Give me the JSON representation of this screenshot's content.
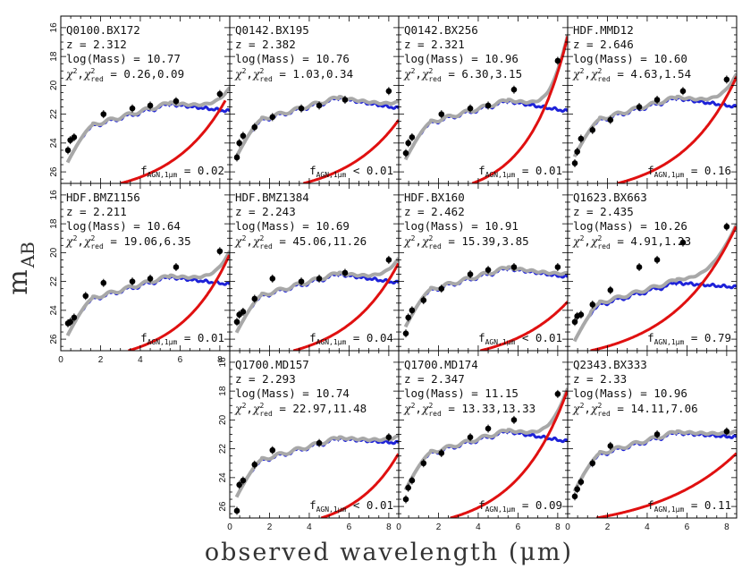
{
  "figure": {
    "xlabel": "observed wavelength (μm)",
    "ylabel": "m",
    "ylabel_sub": "AB"
  },
  "chart_data": {
    "type": "scatter",
    "layout": "3 rows x 4 columns small multiples; bottom-left panel empty",
    "xlabel": "observed wavelength (μm)",
    "ylabel": "m_AB",
    "xlim": [
      0,
      8.5
    ],
    "ylim": [
      26.8,
      15.2
    ],
    "y_inverted": true,
    "xticks": [
      0,
      2,
      4,
      6,
      8
    ],
    "yticks": [
      16,
      18,
      20,
      22,
      24,
      26
    ],
    "legend": "none",
    "grid": false,
    "colors": {
      "photometry_points": "#000000",
      "total_model": "#a8a8a8",
      "stellar_template": "#1e22d8",
      "agn_powerlaw": "#e01010"
    },
    "panels": [
      {
        "id": "Q0100.BX172",
        "z": "2.312",
        "logmass": "10.77",
        "chi2": "0.26,0.09",
        "fagn_op": "=",
        "fagn": "0.02",
        "points": [
          [
            0.36,
            24.5
          ],
          [
            0.48,
            23.8
          ],
          [
            0.67,
            23.6
          ],
          [
            2.15,
            22.0
          ],
          [
            3.6,
            21.6
          ],
          [
            4.5,
            21.4
          ],
          [
            5.8,
            21.1
          ],
          [
            8.0,
            20.6
          ]
        ],
        "stellar_level": 21.3,
        "stellar_drop": 0.5,
        "agn": {
          "x0": 3.0,
          "x1": 8.3,
          "m0": 26.8,
          "m1": 21.0
        }
      },
      {
        "id": "Q0142.BX195",
        "z": "2.382",
        "logmass": "10.76",
        "chi2": "1.03,0.34",
        "fagn_op": "<",
        "fagn": "0.01",
        "points": [
          [
            0.36,
            25.0
          ],
          [
            0.48,
            24.0
          ],
          [
            0.67,
            23.5
          ],
          [
            1.25,
            22.9
          ],
          [
            2.15,
            22.2
          ],
          [
            3.6,
            21.6
          ],
          [
            4.5,
            21.4
          ],
          [
            5.8,
            21.0
          ],
          [
            8.0,
            20.4
          ]
        ],
        "stellar_level": 20.9,
        "stellar_drop": 0.7,
        "agn": {
          "x0": 3.7,
          "x1": 8.5,
          "m0": 26.8,
          "m1": 22.4
        }
      },
      {
        "id": "Q0142.BX256",
        "z": "2.321",
        "logmass": "10.96",
        "chi2": "6.30,3.15",
        "fagn_op": "=",
        "fagn": "0.01",
        "points": [
          [
            0.36,
            24.7
          ],
          [
            0.48,
            24.0
          ],
          [
            0.67,
            23.6
          ],
          [
            2.15,
            22.0
          ],
          [
            3.6,
            21.6
          ],
          [
            4.5,
            21.4
          ],
          [
            5.8,
            20.3
          ],
          [
            8.0,
            18.3
          ]
        ],
        "stellar_level": 21.1,
        "stellar_drop": 0.7,
        "agn": {
          "x0": 3.7,
          "x1": 8.5,
          "m0": 26.8,
          "m1": 16.6
        }
      },
      {
        "id": "HDF.MMD12",
        "z": "2.646",
        "logmass": "10.60",
        "chi2": "4.63,1.54",
        "fagn_op": "=",
        "fagn": "0.16",
        "points": [
          [
            0.36,
            25.4
          ],
          [
            0.48,
            24.6
          ],
          [
            0.67,
            23.7
          ],
          [
            1.25,
            23.1
          ],
          [
            2.15,
            22.4
          ],
          [
            3.6,
            21.5
          ],
          [
            4.5,
            21.0
          ],
          [
            5.8,
            20.4
          ],
          [
            8.0,
            19.6
          ]
        ],
        "stellar_level": 20.9,
        "stellar_drop": 0.6,
        "agn": {
          "x0": 2.5,
          "x1": 8.5,
          "m0": 26.8,
          "m1": 19.4
        }
      },
      {
        "id": "HDF.BMZ1156",
        "z": "2.211",
        "logmass": "10.64",
        "chi2": "19.06,6.35",
        "fagn_op": "=",
        "fagn": "0.01",
        "points": [
          [
            0.36,
            24.9
          ],
          [
            0.48,
            24.8
          ],
          [
            0.67,
            24.5
          ],
          [
            1.25,
            23.0
          ],
          [
            2.15,
            22.1
          ],
          [
            3.6,
            22.0
          ],
          [
            4.5,
            21.8
          ],
          [
            5.8,
            21.0
          ],
          [
            8.0,
            19.9
          ]
        ],
        "stellar_level": 21.7,
        "stellar_drop": 0.5,
        "agn": {
          "x0": 3.4,
          "x1": 8.5,
          "m0": 26.8,
          "m1": 20.1
        }
      },
      {
        "id": "HDF.BMZ1384",
        "z": "2.243",
        "logmass": "10.69",
        "chi2": "45.06,11.26",
        "fagn_op": "=",
        "fagn": "0.04",
        "points": [
          [
            0.36,
            24.8
          ],
          [
            0.48,
            24.3
          ],
          [
            0.67,
            24.1
          ],
          [
            1.25,
            23.2
          ],
          [
            2.15,
            21.8
          ],
          [
            3.6,
            22.0
          ],
          [
            4.5,
            21.8
          ],
          [
            5.8,
            21.4
          ],
          [
            8.0,
            20.5
          ]
        ],
        "stellar_level": 21.5,
        "stellar_drop": 0.6,
        "agn": {
          "x0": 3.2,
          "x1": 8.5,
          "m0": 26.8,
          "m1": 20.7
        }
      },
      {
        "id": "HDF.BX160",
        "z": "2.462",
        "logmass": "10.91",
        "chi2": "15.39,3.85",
        "fagn_op": "<",
        "fagn": "0.01",
        "points": [
          [
            0.36,
            25.6
          ],
          [
            0.48,
            24.5
          ],
          [
            0.67,
            24.0
          ],
          [
            1.25,
            23.3
          ],
          [
            2.15,
            22.5
          ],
          [
            3.6,
            21.5
          ],
          [
            4.5,
            21.2
          ],
          [
            5.8,
            21.0
          ],
          [
            8.0,
            21.0
          ]
        ],
        "stellar_level": 21.1,
        "stellar_drop": 0.6,
        "agn": {
          "x0": 4.1,
          "x1": 8.5,
          "m0": 26.8,
          "m1": 23.4
        }
      },
      {
        "id": "Q1623.BX663",
        "z": "2.435",
        "logmass": "10.26",
        "chi2": "4.91,1.23",
        "fagn_op": "=",
        "fagn": "0.79",
        "points": [
          [
            0.36,
            24.8
          ],
          [
            0.48,
            24.4
          ],
          [
            0.67,
            24.3
          ],
          [
            1.25,
            23.6
          ],
          [
            2.15,
            22.6
          ],
          [
            3.6,
            21.0
          ],
          [
            4.5,
            20.5
          ],
          [
            5.8,
            19.3
          ],
          [
            8.0,
            18.2
          ]
        ],
        "stellar_level": 22.1,
        "stellar_drop": 0.3,
        "agn": {
          "x0": 1.15,
          "x1": 8.5,
          "m0": 26.8,
          "m1": 18.1
        }
      },
      {
        "id": "Q1700.MD157",
        "z": "2.293",
        "logmass": "10.74",
        "chi2": "22.97,11.48",
        "fagn_op": "<",
        "fagn": "0.01",
        "points": [
          [
            0.36,
            26.3
          ],
          [
            0.48,
            24.5
          ],
          [
            0.67,
            24.2
          ],
          [
            1.25,
            23.1
          ],
          [
            2.15,
            22.1
          ],
          [
            4.5,
            21.6
          ],
          [
            8.0,
            21.2
          ]
        ],
        "stellar_level": 21.3,
        "stellar_drop": 0.3,
        "agn": {
          "x0": 4.6,
          "x1": 8.5,
          "m0": 26.8,
          "m1": 22.3
        }
      },
      {
        "id": "Q1700.MD174",
        "z": "2.347",
        "logmass": "11.15",
        "chi2": "13.33,13.33",
        "fagn_op": "=",
        "fagn": "0.09",
        "points": [
          [
            0.36,
            25.5
          ],
          [
            0.48,
            24.7
          ],
          [
            0.67,
            24.2
          ],
          [
            1.25,
            23.0
          ],
          [
            2.15,
            22.3
          ],
          [
            3.6,
            21.2
          ],
          [
            4.5,
            20.6
          ],
          [
            5.8,
            20.0
          ],
          [
            8.0,
            18.2
          ]
        ],
        "stellar_level": 20.8,
        "stellar_drop": 0.7,
        "agn": {
          "x0": 2.6,
          "x1": 8.5,
          "m0": 26.8,
          "m1": 17.9
        }
      },
      {
        "id": "Q2343.BX333",
        "z": "2.33",
        "logmass": "10.96",
        "chi2": "14.11,7.06",
        "fagn_op": "=",
        "fagn": "0.11",
        "points": [
          [
            0.36,
            25.3
          ],
          [
            0.48,
            24.8
          ],
          [
            0.67,
            24.3
          ],
          [
            1.25,
            23.0
          ],
          [
            2.15,
            21.8
          ],
          [
            4.5,
            21.0
          ],
          [
            8.0,
            20.8
          ]
        ],
        "stellar_level": 20.9,
        "stellar_drop": 0.3,
        "agn": {
          "x0": 1.45,
          "x1": 8.5,
          "m0": 26.8,
          "m1": 22.3
        }
      }
    ]
  }
}
